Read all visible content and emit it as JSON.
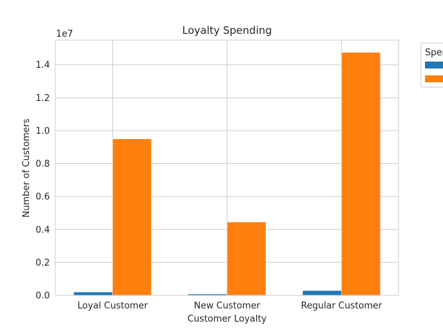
{
  "chart_data": {
    "type": "bar",
    "title": "Loyalty Spending",
    "xlabel": "Customer Loyalty",
    "ylabel": "Number of Customers",
    "y_scale_label": "1e7",
    "categories": [
      "Loyal Customer",
      "New Customer",
      "Regular Customer"
    ],
    "series": [
      {
        "values": [
          200000,
          80000,
          290000
        ],
        "color": "#1f77b4"
      },
      {
        "values": [
          9500000,
          4450000,
          14750000
        ],
        "color": "#ff7f0e"
      }
    ],
    "ylim": [
      0,
      15500000
    ],
    "yticks": [
      0,
      2000000,
      4000000,
      6000000,
      8000000,
      10000000,
      12000000,
      14000000
    ],
    "ytick_labels": [
      "0.0",
      "0.2",
      "0.4",
      "0.6",
      "0.8",
      "1.0",
      "1.2",
      "1.4"
    ],
    "legend": {
      "title": "Spen",
      "placement": "outside top-right"
    },
    "grid": true
  }
}
